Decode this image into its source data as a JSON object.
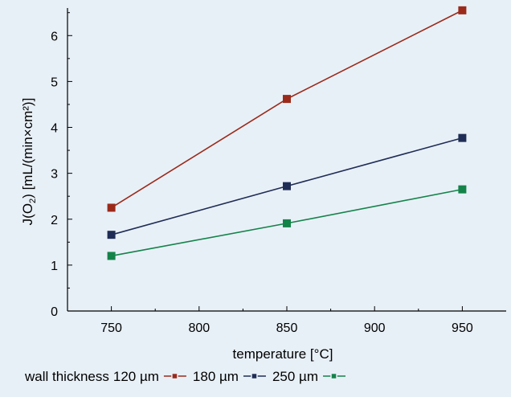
{
  "chart_data": {
    "type": "line",
    "xlabel": "temperature [°C]",
    "ylabel_main": "J(O",
    "ylabel_sub": "2",
    "ylabel_rest": ") [mL/(min×cm²)]",
    "xlim": [
      725,
      975
    ],
    "ylim": [
      0,
      6.6
    ],
    "x_ticks": [
      750,
      800,
      850,
      900,
      950
    ],
    "y_ticks": [
      0,
      1,
      2,
      3,
      4,
      5,
      6
    ],
    "legend_prefix": "wall thickness",
    "legend_placement": "bottom",
    "grid": false,
    "series": [
      {
        "name": "120 µm",
        "color": "#9b2a1a",
        "x": [
          750,
          850,
          950
        ],
        "y": [
          2.25,
          4.62,
          6.55
        ]
      },
      {
        "name": "180 µm",
        "color": "#1f2d56",
        "x": [
          750,
          850,
          950
        ],
        "y": [
          1.66,
          2.72,
          3.77
        ]
      },
      {
        "name": "250 µm",
        "color": "#14834a",
        "x": [
          750,
          850,
          950
        ],
        "y": [
          1.2,
          1.91,
          2.65
        ]
      }
    ]
  }
}
